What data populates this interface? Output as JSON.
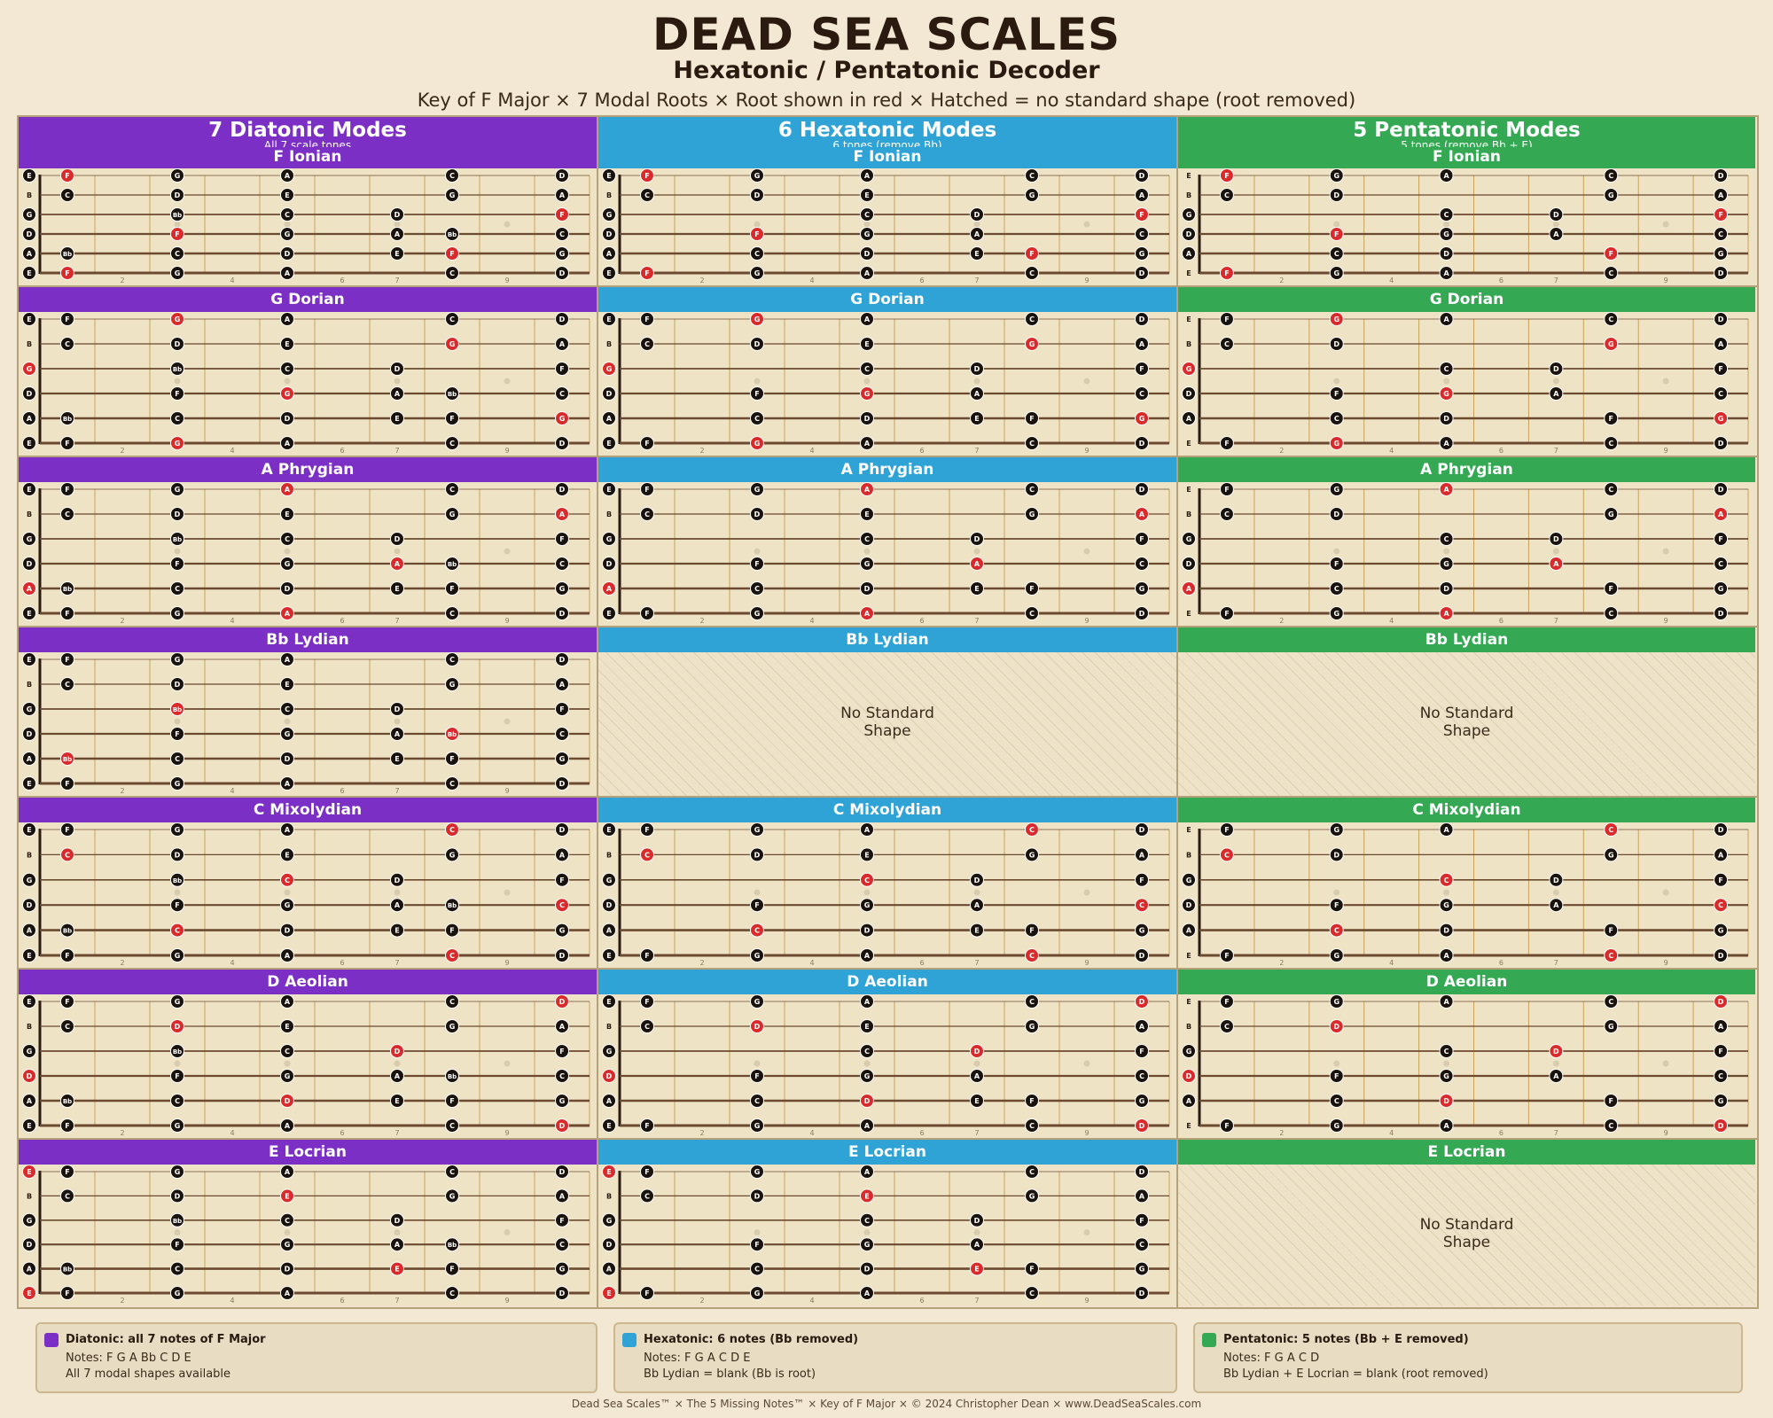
{
  "header": {
    "title": "DEAD SEA SCALES",
    "subtitle": "Hexatonic / Pentatonic Decoder",
    "tagline": "Key of F Major  ×  7 Modal Roots  ×  Root shown in red  ×  Hatched = no standard shape (root removed)"
  },
  "colors": {
    "diatonic": "#7b2fc4",
    "hexatonic": "#2fa3d6",
    "pentatonic": "#34a853",
    "root": "#d92b2b",
    "note": "#1a120c",
    "fret_bg": "#efe3c6"
  },
  "columns": [
    {
      "title": "7 Diatonic Modes",
      "sub": "All 7 scale tones",
      "notes": [
        "F",
        "G",
        "A",
        "Bb",
        "C",
        "D",
        "E"
      ]
    },
    {
      "title": "6 Hexatonic Modes",
      "sub": "6 tones  (remove Bb)",
      "notes": [
        "F",
        "G",
        "A",
        "C",
        "D",
        "E"
      ]
    },
    {
      "title": "5 Pentatonic Modes",
      "sub": "5 tones  (remove Bb + E)",
      "notes": [
        "F",
        "G",
        "A",
        "C",
        "D"
      ]
    }
  ],
  "modes": [
    {
      "name": "F Ionian",
      "root": "F",
      "hex": true,
      "pent": true
    },
    {
      "name": "G Dorian",
      "root": "G",
      "hex": true,
      "pent": true
    },
    {
      "name": "A Phrygian",
      "root": "A",
      "hex": true,
      "pent": true
    },
    {
      "name": "Bb Lydian",
      "root": "Bb",
      "hex": false,
      "pent": false
    },
    {
      "name": "C Mixolydian",
      "root": "C",
      "hex": true,
      "pent": true
    },
    {
      "name": "D Aeolian",
      "root": "D",
      "hex": true,
      "pent": true
    },
    {
      "name": "E Locrian",
      "root": "E",
      "hex": true,
      "pent": false
    }
  ],
  "no_shape_text": [
    "No Standard",
    "Shape"
  ],
  "fretboard": {
    "strings": [
      "E",
      "B",
      "G",
      "D",
      "A",
      "E"
    ],
    "fret_count": 10,
    "fret_numbers": [
      "2",
      "4",
      "6",
      "7",
      "9"
    ],
    "fret_number_positions": [
      2,
      4,
      6,
      7,
      9
    ],
    "inlay_frets": [
      3,
      5,
      7,
      9
    ]
  },
  "legend": [
    {
      "title": "Diatonic: all 7 notes of F Major",
      "notes": "Notes: F  G  A  Bb  C  D  E",
      "extra": "All 7 modal shapes available"
    },
    {
      "title": "Hexatonic: 6 notes  (Bb removed)",
      "notes": "Notes: F  G  A  C  D  E",
      "extra": "Bb Lydian = blank  (Bb is root)"
    },
    {
      "title": "Pentatonic: 5 notes  (Bb + E removed)",
      "notes": "Notes: F  G  A  C  D",
      "extra": "Bb Lydian + E Locrian = blank  (root removed)"
    }
  ],
  "footer": "Dead Sea Scales™  ×  The 5 Missing Notes™  ×  Key of F Major  ×  © 2024 Christopher Dean  ×  www.DeadSeaScales.com"
}
